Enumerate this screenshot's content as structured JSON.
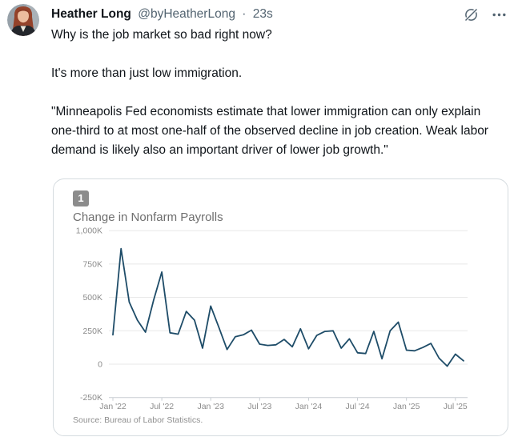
{
  "post": {
    "author": "Heather Long",
    "handle": "@byHeatherLong",
    "separator": "·",
    "timestamp": "23s",
    "paragraphs": [
      "Why is the job market so bad right now?",
      "It's more than just low immigration.",
      "\"Minneapolis Fed economists estimate that lower immigration can only explain one-third to at most one-half of the observed decline in job creation. Weak labor demand is likely also an important driver of lower job growth.\""
    ]
  },
  "chart_card": {
    "badge": "1",
    "title": "Change in Nonfarm Payrolls",
    "source": "Source: Bureau of Labor Statistics."
  },
  "chart_data": {
    "type": "line",
    "title": "Change in Nonfarm Payrolls",
    "unit": "thousands of jobs, monthly change",
    "line_color": "#1e4c68",
    "grid": true,
    "ylim": [
      -250,
      1000
    ],
    "y_ticks": [
      1000,
      750,
      500,
      250,
      0,
      -250
    ],
    "y_tick_labels": [
      "1,000K",
      "750K",
      "500K",
      "250K",
      "0",
      "-250K"
    ],
    "x_tick_every_months": 6,
    "x_tick_labels": [
      "Jan '22",
      "Jul '22",
      "Jan '23",
      "Jul '23",
      "Jan '24",
      "Jul '24",
      "Jan '25",
      "Jul '25"
    ],
    "months": [
      "Jan 2022",
      "Feb 2022",
      "Mar 2022",
      "Apr 2022",
      "May 2022",
      "Jun 2022",
      "Jul 2022",
      "Aug 2022",
      "Sep 2022",
      "Oct 2022",
      "Nov 2022",
      "Dec 2022",
      "Jan 2023",
      "Feb 2023",
      "Mar 2023",
      "Apr 2023",
      "May 2023",
      "Jun 2023",
      "Jul 2023",
      "Aug 2023",
      "Sep 2023",
      "Oct 2023",
      "Nov 2023",
      "Dec 2023",
      "Jan 2024",
      "Feb 2024",
      "Mar 2024",
      "Apr 2024",
      "May 2024",
      "Jun 2024",
      "Jul 2024",
      "Aug 2024",
      "Sep 2024",
      "Oct 2024",
      "Nov 2024",
      "Dec 2024",
      "Jan 2025",
      "Feb 2025",
      "Mar 2025",
      "Apr 2025",
      "May 2025",
      "Jun 2025",
      "Jul 2025",
      "Aug 2025"
    ],
    "values": [
      220,
      865,
      465,
      330,
      240,
      480,
      690,
      235,
      225,
      395,
      330,
      120,
      435,
      275,
      110,
      205,
      220,
      255,
      150,
      140,
      145,
      185,
      130,
      265,
      115,
      215,
      245,
      250,
      120,
      190,
      85,
      80,
      245,
      40,
      250,
      315,
      105,
      100,
      125,
      155,
      45,
      -15,
      75,
      25
    ],
    "source": "Source: Bureau of Labor Statistics."
  }
}
